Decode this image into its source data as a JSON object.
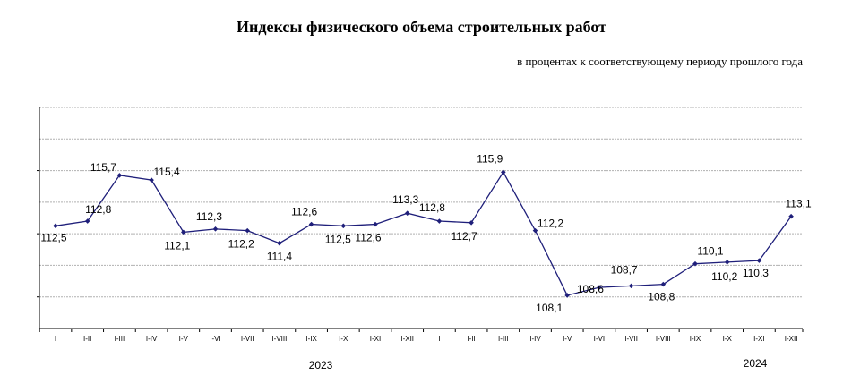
{
  "title": "Индексы физического объема строительных работ",
  "subtitle": "в процентах к соответствующему периоду прошлого года",
  "colors": {
    "series": "#1f1f7a",
    "grid": "#b0b0b0",
    "axis": "#000000"
  },
  "chart_data": {
    "type": "line",
    "categories": [
      "I",
      "I-II",
      "I-III",
      "I-IV",
      "I-V",
      "I-VI",
      "I-VII",
      "I-VIII",
      "I-IX",
      "I-X",
      "I-XI",
      "I-XII",
      "I",
      "I-II",
      "I-III",
      "I-IV",
      "I-V",
      "I-VI",
      "I-VII",
      "I-VIII",
      "I-IX",
      "I-X",
      "I-XI",
      "I-XII"
    ],
    "year_labels": [
      "2023",
      "2024"
    ],
    "series": [
      {
        "values": [
          112.5,
          112.8,
          115.7,
          115.4,
          112.1,
          112.3,
          112.2,
          111.4,
          112.6,
          112.5,
          112.6,
          113.3,
          112.8,
          112.7,
          115.9,
          112.2,
          108.1,
          108.6,
          108.7,
          108.8,
          110.1,
          110.2,
          110.3,
          113.1
        ],
        "labels": [
          "112,5",
          "112,8",
          "115,7",
          "115,4",
          "112,1",
          "112,3",
          "112,2",
          "111,4",
          "112,6",
          "112,5",
          "112,6",
          "113,3",
          "112,8",
          "112,7",
          "115,9",
          "112,2",
          "108,1",
          "108,6",
          "108,7",
          "108,8",
          "110,1",
          "110,2",
          "110,3",
          "113,1"
        ]
      }
    ],
    "ylim": [
      106,
      120
    ],
    "grid": true,
    "legend": "none"
  }
}
